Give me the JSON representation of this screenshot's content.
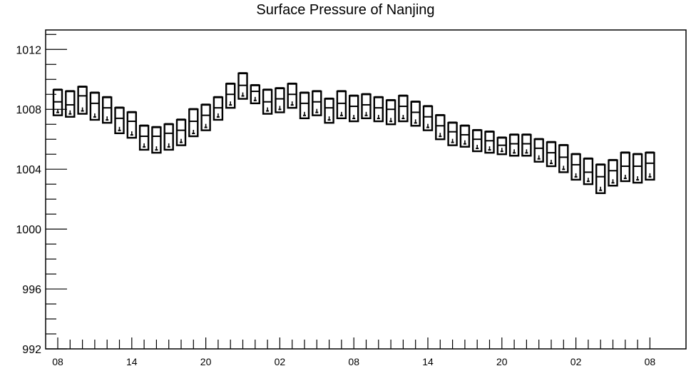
{
  "chart_data": {
    "type": "box",
    "title": "Surface Pressure of Nanjing",
    "xlabel": "",
    "ylabel": "",
    "ylim": [
      992,
      1013.3
    ],
    "y_ticks": [
      992,
      996,
      1000,
      1004,
      1008,
      1012
    ],
    "x_tick_labels": [
      "08",
      "14",
      "20",
      "02",
      "08",
      "14",
      "20",
      "02",
      "08"
    ],
    "x_tick_positions": [
      0,
      6,
      12,
      18,
      24,
      30,
      36,
      42,
      48
    ],
    "grid": false,
    "legend": "none",
    "boxes": [
      {
        "x": 0,
        "q1": 1007.6,
        "median": 1008.5,
        "q3": 1009.3,
        "min": 1007.6,
        "max": 1009.3
      },
      {
        "x": 1,
        "q1": 1007.5,
        "median": 1008.3,
        "q3": 1009.2,
        "min": 1007.5,
        "max": 1009.2
      },
      {
        "x": 2,
        "q1": 1007.7,
        "median": 1008.9,
        "q3": 1009.5,
        "min": 1007.7,
        "max": 1009.5
      },
      {
        "x": 3,
        "q1": 1007.3,
        "median": 1008.4,
        "q3": 1009.1,
        "min": 1007.3,
        "max": 1009.1
      },
      {
        "x": 4,
        "q1": 1007.1,
        "median": 1008.1,
        "q3": 1008.8,
        "min": 1007.1,
        "max": 1008.8
      },
      {
        "x": 5,
        "q1": 1006.4,
        "median": 1007.4,
        "q3": 1008.1,
        "min": 1006.4,
        "max": 1008.1
      },
      {
        "x": 6,
        "q1": 1006.1,
        "median": 1007.2,
        "q3": 1007.8,
        "min": 1006.1,
        "max": 1007.8
      },
      {
        "x": 7,
        "q1": 1005.3,
        "median": 1006.2,
        "q3": 1006.9,
        "min": 1005.3,
        "max": 1006.9
      },
      {
        "x": 8,
        "q1": 1005.1,
        "median": 1006.2,
        "q3": 1006.8,
        "min": 1005.1,
        "max": 1006.8
      },
      {
        "x": 9,
        "q1": 1005.3,
        "median": 1006.4,
        "q3": 1007.0,
        "min": 1005.3,
        "max": 1007.0
      },
      {
        "x": 10,
        "q1": 1005.6,
        "median": 1006.6,
        "q3": 1007.3,
        "min": 1005.6,
        "max": 1007.3
      },
      {
        "x": 11,
        "q1": 1006.2,
        "median": 1007.2,
        "q3": 1008.0,
        "min": 1006.2,
        "max": 1008.0
      },
      {
        "x": 12,
        "q1": 1006.6,
        "median": 1007.6,
        "q3": 1008.3,
        "min": 1006.6,
        "max": 1008.3
      },
      {
        "x": 13,
        "q1": 1007.3,
        "median": 1008.1,
        "q3": 1008.8,
        "min": 1007.3,
        "max": 1008.8
      },
      {
        "x": 14,
        "q1": 1008.1,
        "median": 1009.0,
        "q3": 1009.7,
        "min": 1008.1,
        "max": 1009.7
      },
      {
        "x": 15,
        "q1": 1008.7,
        "median": 1009.6,
        "q3": 1010.4,
        "min": 1008.7,
        "max": 1010.4
      },
      {
        "x": 16,
        "q1": 1008.4,
        "median": 1009.2,
        "q3": 1009.6,
        "min": 1008.4,
        "max": 1009.6
      },
      {
        "x": 17,
        "q1": 1007.7,
        "median": 1008.5,
        "q3": 1009.3,
        "min": 1007.7,
        "max": 1009.3
      },
      {
        "x": 18,
        "q1": 1007.8,
        "median": 1008.7,
        "q3": 1009.4,
        "min": 1007.8,
        "max": 1009.4
      },
      {
        "x": 19,
        "q1": 1008.1,
        "median": 1009.0,
        "q3": 1009.7,
        "min": 1008.1,
        "max": 1009.7
      },
      {
        "x": 20,
        "q1": 1007.4,
        "median": 1008.4,
        "q3": 1009.1,
        "min": 1007.4,
        "max": 1009.1
      },
      {
        "x": 21,
        "q1": 1007.6,
        "median": 1008.5,
        "q3": 1009.2,
        "min": 1007.6,
        "max": 1009.2
      },
      {
        "x": 22,
        "q1": 1007.1,
        "median": 1008.1,
        "q3": 1008.7,
        "min": 1007.1,
        "max": 1008.7
      },
      {
        "x": 23,
        "q1": 1007.4,
        "median": 1008.4,
        "q3": 1009.2,
        "min": 1007.4,
        "max": 1009.2
      },
      {
        "x": 24,
        "q1": 1007.2,
        "median": 1008.2,
        "q3": 1008.9,
        "min": 1007.2,
        "max": 1008.9
      },
      {
        "x": 25,
        "q1": 1007.4,
        "median": 1008.3,
        "q3": 1009.0,
        "min": 1007.4,
        "max": 1009.0
      },
      {
        "x": 26,
        "q1": 1007.2,
        "median": 1008.1,
        "q3": 1008.8,
        "min": 1007.2,
        "max": 1008.8
      },
      {
        "x": 27,
        "q1": 1007.0,
        "median": 1008.0,
        "q3": 1008.6,
        "min": 1007.0,
        "max": 1008.6
      },
      {
        "x": 28,
        "q1": 1007.2,
        "median": 1008.2,
        "q3": 1008.9,
        "min": 1007.2,
        "max": 1008.9
      },
      {
        "x": 29,
        "q1": 1006.9,
        "median": 1007.8,
        "q3": 1008.5,
        "min": 1006.9,
        "max": 1008.5
      },
      {
        "x": 30,
        "q1": 1006.6,
        "median": 1007.5,
        "q3": 1008.2,
        "min": 1006.6,
        "max": 1008.2
      },
      {
        "x": 31,
        "q1": 1006.0,
        "median": 1006.9,
        "q3": 1007.6,
        "min": 1006.0,
        "max": 1007.6
      },
      {
        "x": 32,
        "q1": 1005.6,
        "median": 1006.5,
        "q3": 1007.1,
        "min": 1005.6,
        "max": 1007.1
      },
      {
        "x": 33,
        "q1": 1005.5,
        "median": 1006.3,
        "q3": 1006.9,
        "min": 1005.5,
        "max": 1006.9
      },
      {
        "x": 34,
        "q1": 1005.2,
        "median": 1006.0,
        "q3": 1006.6,
        "min": 1005.2,
        "max": 1006.6
      },
      {
        "x": 35,
        "q1": 1005.1,
        "median": 1005.9,
        "q3": 1006.5,
        "min": 1005.1,
        "max": 1006.5
      },
      {
        "x": 36,
        "q1": 1005.0,
        "median": 1005.6,
        "q3": 1006.1,
        "min": 1005.0,
        "max": 1006.1
      },
      {
        "x": 37,
        "q1": 1004.9,
        "median": 1005.7,
        "q3": 1006.3,
        "min": 1004.9,
        "max": 1006.3
      },
      {
        "x": 38,
        "q1": 1004.9,
        "median": 1005.7,
        "q3": 1006.3,
        "min": 1004.9,
        "max": 1006.3
      },
      {
        "x": 39,
        "q1": 1004.5,
        "median": 1005.4,
        "q3": 1006.0,
        "min": 1004.5,
        "max": 1006.0
      },
      {
        "x": 40,
        "q1": 1004.2,
        "median": 1005.1,
        "q3": 1005.8,
        "min": 1004.2,
        "max": 1005.8
      },
      {
        "x": 41,
        "q1": 1003.8,
        "median": 1004.8,
        "q3": 1005.6,
        "min": 1003.8,
        "max": 1005.6
      },
      {
        "x": 42,
        "q1": 1003.3,
        "median": 1004.3,
        "q3": 1005.0,
        "min": 1003.3,
        "max": 1005.0
      },
      {
        "x": 43,
        "q1": 1003.0,
        "median": 1003.8,
        "q3": 1004.7,
        "min": 1003.0,
        "max": 1004.7
      },
      {
        "x": 44,
        "q1": 1002.4,
        "median": 1003.5,
        "q3": 1004.3,
        "min": 1002.4,
        "max": 1004.3
      },
      {
        "x": 45,
        "q1": 1002.9,
        "median": 1003.9,
        "q3": 1004.6,
        "min": 1002.9,
        "max": 1004.6
      },
      {
        "x": 46,
        "q1": 1003.2,
        "median": 1004.2,
        "q3": 1005.1,
        "min": 1003.2,
        "max": 1005.1
      },
      {
        "x": 47,
        "q1": 1003.1,
        "median": 1004.2,
        "q3": 1005.0,
        "min": 1003.1,
        "max": 1005.0
      },
      {
        "x": 48,
        "q1": 1003.3,
        "median": 1004.4,
        "q3": 1005.1,
        "min": 1003.3,
        "max": 1005.1
      }
    ]
  }
}
